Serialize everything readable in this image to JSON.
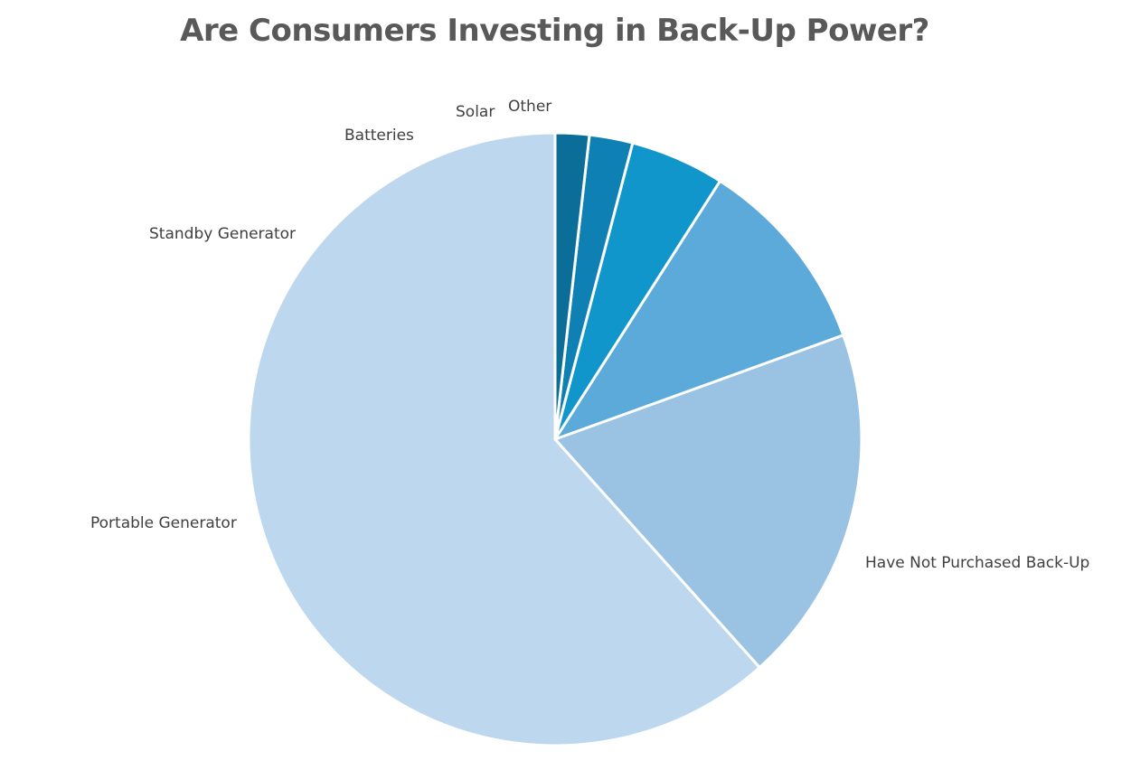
{
  "chart_data": {
    "type": "pie",
    "title": "Are Consumers Investing in Back-Up Power?",
    "legend": "none",
    "categories": [
      "Have Not Purchased Back-Up",
      "Portable Generator",
      "Standby Generator",
      "Batteries",
      "Solar",
      "Other"
    ],
    "values": [
      62,
      19,
      10.5,
      5,
      2.3,
      1.8
    ],
    "colors": [
      "#BDD7EE",
      "#9AC3E3",
      "#5BAAD9",
      "#1196CC",
      "#0F80B3",
      "#0B6E99"
    ],
    "start": "12 o'clock",
    "direction": "clockwise",
    "data_labels": "category name"
  }
}
